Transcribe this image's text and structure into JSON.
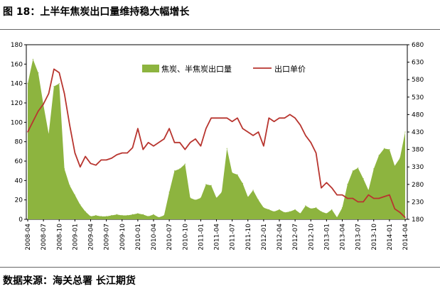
{
  "figure": {
    "title": "图 18：上半年焦炭出口量维持稳大幅增长",
    "source": "数据来源：海关总署 长江期货"
  },
  "colors": {
    "area": "#8db43f",
    "line": "#b8352f"
  },
  "chart_data": {
    "type": "area",
    "title": "",
    "x_ticks": [
      "2008-04",
      "2008-07",
      "2008-10",
      "2009-01",
      "2009-04",
      "2009-07",
      "2009-10",
      "2010-01",
      "2010-04",
      "2010-07",
      "2010-10",
      "2011-01",
      "2011-04",
      "2011-07",
      "2011-10",
      "2012-01",
      "2012-04",
      "2012-07",
      "2012-10",
      "2013-01",
      "2013-04",
      "2013-07",
      "2013-10",
      "2014-01",
      "2014-04"
    ],
    "x": [
      "2008-04",
      "2008-05",
      "2008-06",
      "2008-07",
      "2008-08",
      "2008-09",
      "2008-10",
      "2008-11",
      "2008-12",
      "2009-01",
      "2009-02",
      "2009-03",
      "2009-04",
      "2009-05",
      "2009-06",
      "2009-07",
      "2009-08",
      "2009-09",
      "2009-10",
      "2009-11",
      "2009-12",
      "2010-01",
      "2010-02",
      "2010-03",
      "2010-04",
      "2010-05",
      "2010-06",
      "2010-07",
      "2010-08",
      "2010-09",
      "2010-10",
      "2010-11",
      "2010-12",
      "2011-01",
      "2011-02",
      "2011-03",
      "2011-04",
      "2011-05",
      "2011-06",
      "2011-07",
      "2011-08",
      "2011-09",
      "2011-10",
      "2011-11",
      "2011-12",
      "2012-01",
      "2012-02",
      "2012-03",
      "2012-04",
      "2012-05",
      "2012-06",
      "2012-07",
      "2012-08",
      "2012-09",
      "2012-10",
      "2012-11",
      "2012-12",
      "2013-01",
      "2013-02",
      "2013-03",
      "2013-04",
      "2013-05",
      "2013-06",
      "2013-07",
      "2013-08",
      "2013-09",
      "2013-10",
      "2013-11",
      "2013-12",
      "2014-01",
      "2014-02",
      "2014-03",
      "2014-04"
    ],
    "y_left": {
      "range": [
        0,
        180
      ],
      "ticks": [
        0,
        20,
        40,
        60,
        80,
        100,
        120,
        140,
        160,
        180
      ]
    },
    "y_right": {
      "range": [
        180,
        680
      ],
      "ticks": [
        180,
        230,
        280,
        330,
        380,
        430,
        480,
        530,
        580,
        630,
        680
      ]
    },
    "legend": {
      "position": "top-center"
    },
    "series": [
      {
        "name": "焦炭、半焦炭出口量",
        "type": "area",
        "axis": "left",
        "values": [
          140,
          165,
          151,
          118,
          88,
          137,
          140,
          52,
          35,
          25,
          15,
          8,
          3,
          4,
          3,
          3,
          4,
          5,
          4,
          4,
          5,
          6,
          5,
          3,
          5,
          2,
          4,
          28,
          50,
          52,
          57,
          22,
          20,
          22,
          36,
          35,
          22,
          28,
          73,
          48,
          46,
          37,
          23,
          30,
          20,
          12,
          10,
          8,
          10,
          7,
          8,
          10,
          6,
          14,
          11,
          12,
          8,
          6,
          10,
          2,
          12,
          36,
          50,
          53,
          42,
          30,
          52,
          66,
          73,
          72,
          55,
          63,
          90
        ]
      },
      {
        "name": "出口单价",
        "type": "line",
        "axis": "right",
        "values": [
          430,
          460,
          490,
          510,
          540,
          610,
          600,
          540,
          450,
          370,
          330,
          360,
          340,
          335,
          350,
          350,
          355,
          365,
          370,
          370,
          385,
          440,
          380,
          400,
          390,
          400,
          410,
          440,
          400,
          400,
          380,
          400,
          410,
          390,
          440,
          470,
          470,
          470,
          470,
          460,
          470,
          440,
          430,
          420,
          430,
          390,
          470,
          460,
          470,
          470,
          480,
          470,
          450,
          420,
          400,
          370,
          270,
          285,
          270,
          250,
          250,
          240,
          240,
          230,
          230,
          250,
          240,
          240,
          245,
          250,
          210,
          200,
          185
        ]
      }
    ]
  }
}
